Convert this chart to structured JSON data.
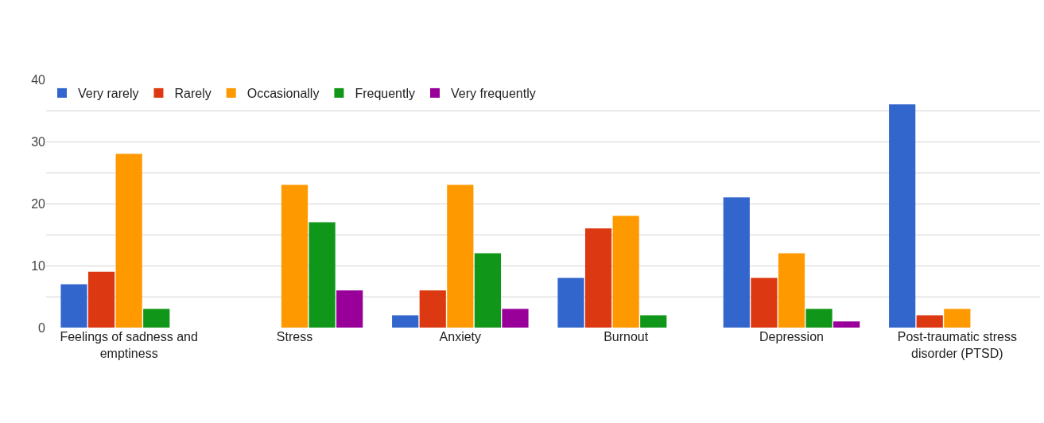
{
  "chart_data": {
    "type": "bar",
    "categories": [
      "Feelings of sadness and emptiness",
      "Stress",
      "Anxiety",
      "Burnout",
      "Depression",
      "Post-traumatic stress disorder (PTSD)"
    ],
    "series": [
      {
        "name": "Very rarely",
        "color": "#3366cc",
        "values": [
          7,
          0,
          2,
          8,
          21,
          36
        ]
      },
      {
        "name": "Rarely",
        "color": "#dc3912",
        "values": [
          9,
          0,
          6,
          16,
          8,
          2
        ]
      },
      {
        "name": "Occasionally",
        "color": "#ff9900",
        "values": [
          28,
          23,
          23,
          18,
          12,
          3
        ]
      },
      {
        "name": "Frequently",
        "color": "#109618",
        "values": [
          3,
          17,
          12,
          2,
          3,
          0
        ]
      },
      {
        "name": "Very frequently",
        "color": "#990099",
        "values": [
          0,
          6,
          3,
          0,
          1,
          0
        ]
      }
    ],
    "ylim": [
      0,
      40
    ],
    "yticks": [
      0,
      {
        "value": 5,
        "label": null
      },
      10,
      {
        "value": 15,
        "label": null
      },
      20,
      {
        "value": 25,
        "label": null
      },
      30,
      {
        "value": 35,
        "label": null
      },
      40
    ],
    "grid": "y",
    "legend": "top left"
  }
}
